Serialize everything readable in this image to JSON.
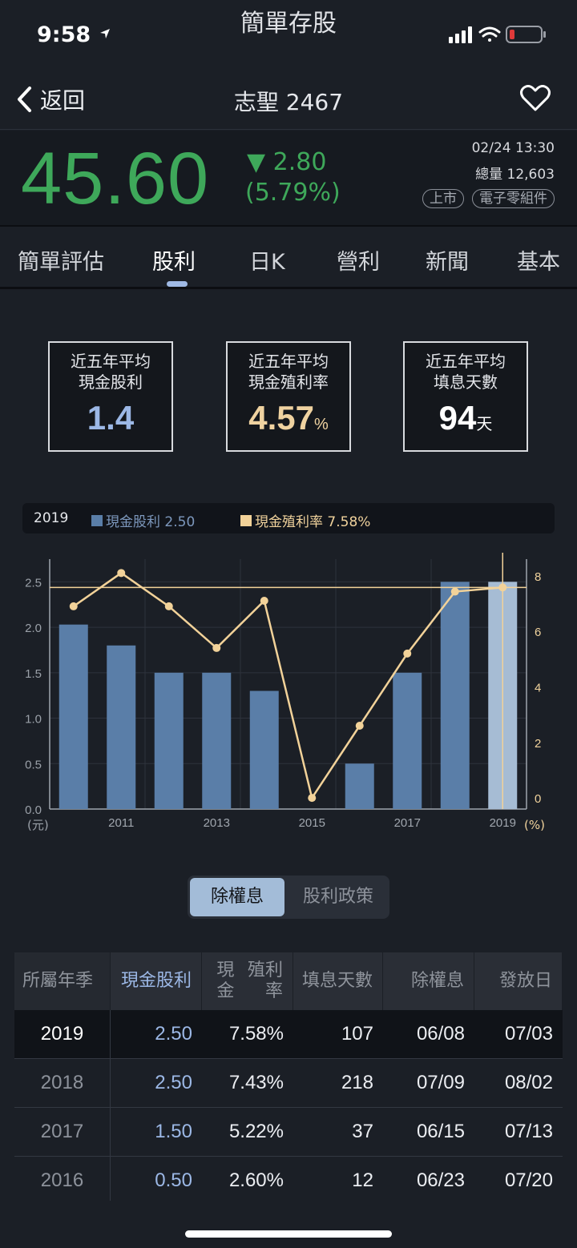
{
  "status": {
    "time": "9:58",
    "app_title": "簡單存股"
  },
  "nav": {
    "back_label": "返回",
    "title": "志聖 2467"
  },
  "quote": {
    "price": "45.60",
    "change": "▼ 2.80",
    "change_pct": "(5.79%)",
    "datetime": "02/24 13:30",
    "volume": "總量 12,603",
    "tags": [
      "上市",
      "電子零組件"
    ],
    "color": "#3ea85a"
  },
  "tabs": [
    "簡單評估",
    "股利",
    "日K",
    "營利",
    "新聞",
    "基本"
  ],
  "stats": [
    {
      "label1": "近五年平均",
      "label2": "現金股利",
      "value": "1.4",
      "unit": "",
      "color": "#9cb8e6"
    },
    {
      "label1": "近五年平均",
      "label2": "現金殖利率",
      "value": "4.57",
      "unit": "%",
      "color": "#efd2a0"
    },
    {
      "label1": "近五年平均",
      "label2": "填息天數",
      "value": "94",
      "unit": "天",
      "color": "#ffffff"
    }
  ],
  "legend": {
    "year": "2019",
    "dividend": "現金股利 2.50",
    "yield": "現金殖利率 7.58%"
  },
  "chart_data": {
    "type": "bar+line",
    "x": [
      2010,
      2011,
      2012,
      2013,
      2014,
      2015,
      2016,
      2017,
      2018,
      2019
    ],
    "x_tick_labels": [
      "2011",
      "2013",
      "2015",
      "2017",
      "2019"
    ],
    "series": [
      {
        "name": "現金股利",
        "axis": "left",
        "type": "bar",
        "values": [
          2.03,
          1.8,
          1.5,
          1.5,
          1.3,
          0,
          0.5,
          1.5,
          2.5,
          2.5
        ],
        "color": "#5a7ea8"
      },
      {
        "name": "現金殖利率",
        "axis": "right",
        "type": "line",
        "values": [
          6.9,
          8.1,
          6.9,
          5.4,
          7.1,
          0,
          2.6,
          5.2,
          7.43,
          7.58
        ],
        "color": "#f2d299"
      }
    ],
    "left_axis": {
      "ticks": [
        "0.0",
        "0.5",
        "1.0",
        "1.5",
        "2.0",
        "2.5"
      ],
      "unit": "(元)",
      "range": [
        0,
        2.75
      ]
    },
    "right_axis": {
      "ticks": [
        "0",
        "2",
        "4",
        "6",
        "8"
      ],
      "unit": "(%)",
      "range": [
        -0.4,
        8.6
      ]
    },
    "reference_yield": 7.58,
    "highlight_index": 9
  },
  "segment": {
    "on": "除權息",
    "off": "股利政策"
  },
  "table": {
    "headers": [
      [
        "所屬年季"
      ],
      [
        "現金",
        "股利"
      ],
      [
        "現金",
        "殖利率"
      ],
      [
        "填息",
        "天數"
      ],
      [
        "除權息"
      ],
      [
        "發放日"
      ]
    ],
    "rows": [
      [
        "2019",
        "2.50",
        "7.58%",
        "107",
        "06/08",
        "07/03"
      ],
      [
        "2018",
        "2.50",
        "7.43%",
        "218",
        "07/09",
        "08/02"
      ],
      [
        "2017",
        "1.50",
        "5.22%",
        "37",
        "06/15",
        "07/13"
      ],
      [
        "2016",
        "0.50",
        "2.60%",
        "12",
        "06/23",
        "07/20"
      ]
    ]
  }
}
